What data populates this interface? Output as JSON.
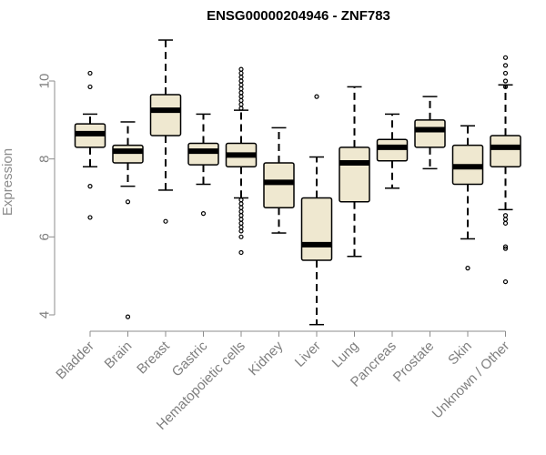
{
  "chart_data": {
    "type": "boxplot",
    "title": "ENSG00000204946 - ZNF783",
    "xlabel": "",
    "ylabel": "Expression",
    "ylim": [
      3.6,
      11.2
    ],
    "yticks": [
      4,
      6,
      8,
      10
    ],
    "ytick_labels": [
      "4",
      "6",
      "8",
      "10"
    ],
    "grid": false,
    "legend": "none",
    "colors": {
      "box_fill": "#efe8d0",
      "box_stroke": "#000000",
      "median": "#000000",
      "axis": "#8c8c8c"
    },
    "categories": [
      "Bladder",
      "Brain",
      "Breast",
      "Gastric",
      "Hematopoietic cells",
      "Kidney",
      "Liver",
      "Lung",
      "Pancreas",
      "Prostate",
      "Skin",
      "Unknown / Other"
    ],
    "boxes": [
      {
        "label": "Bladder",
        "min": 7.8,
        "q1": 8.3,
        "median": 8.65,
        "q3": 8.9,
        "max": 9.15,
        "outliers": [
          10.2,
          9.85,
          7.3,
          6.5
        ]
      },
      {
        "label": "Brain",
        "min": 7.3,
        "q1": 7.9,
        "median": 8.2,
        "q3": 8.35,
        "max": 8.95,
        "outliers": [
          6.9,
          3.95
        ]
      },
      {
        "label": "Breast",
        "min": 7.2,
        "q1": 8.6,
        "median": 9.25,
        "q3": 9.65,
        "max": 11.05,
        "outliers": [
          6.4
        ]
      },
      {
        "label": "Gastric",
        "min": 7.35,
        "q1": 7.85,
        "median": 8.2,
        "q3": 8.4,
        "max": 9.15,
        "outliers": [
          6.6
        ]
      },
      {
        "label": "Hematopoietic cells",
        "min": 7.0,
        "q1": 7.8,
        "median": 8.1,
        "q3": 8.4,
        "max": 9.25,
        "outliers": [
          10.3,
          10.2,
          10.1,
          10.0,
          9.9,
          9.8,
          9.7,
          9.6,
          9.5,
          9.4,
          9.3,
          6.95,
          6.85,
          6.75,
          6.65,
          6.55,
          6.45,
          6.35,
          6.25,
          6.15,
          6.0,
          5.6
        ]
      },
      {
        "label": "Kidney",
        "min": 6.1,
        "q1": 6.75,
        "median": 7.4,
        "q3": 7.9,
        "max": 8.8,
        "outliers": []
      },
      {
        "label": "Liver",
        "min": 3.75,
        "q1": 5.4,
        "median": 5.8,
        "q3": 7.0,
        "max": 8.05,
        "outliers": [
          9.6
        ]
      },
      {
        "label": "Lung",
        "min": 5.5,
        "q1": 6.9,
        "median": 7.9,
        "q3": 8.3,
        "max": 9.85,
        "outliers": []
      },
      {
        "label": "Pancreas",
        "min": 7.25,
        "q1": 7.95,
        "median": 8.3,
        "q3": 8.5,
        "max": 9.15,
        "outliers": []
      },
      {
        "label": "Prostate",
        "min": 7.75,
        "q1": 8.3,
        "median": 8.75,
        "q3": 9.0,
        "max": 9.6,
        "outliers": []
      },
      {
        "label": "Skin",
        "min": 5.95,
        "q1": 7.35,
        "median": 7.8,
        "q3": 8.35,
        "max": 8.85,
        "outliers": [
          5.2
        ]
      },
      {
        "label": "Unknown / Other",
        "min": 6.7,
        "q1": 7.8,
        "median": 8.3,
        "q3": 8.6,
        "max": 9.9,
        "outliers": [
          10.6,
          10.4,
          10.2,
          10.0,
          9.85,
          6.55,
          6.45,
          6.35,
          5.75,
          5.7,
          4.85
        ]
      }
    ]
  }
}
